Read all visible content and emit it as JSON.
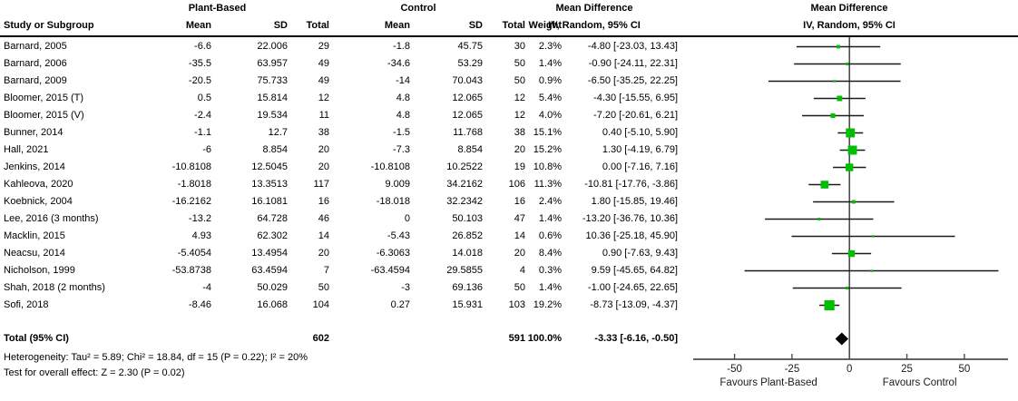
{
  "header": {
    "group1": "Plant-Based",
    "group2": "Control",
    "col_study": "Study or Subgroup",
    "col_mean": "Mean",
    "col_sd": "SD",
    "col_total": "Total",
    "col_weight": "Weight",
    "md_title": "Mean Difference",
    "md_sub": "IV, Random, 95% CI"
  },
  "total_row": {
    "label": "Total (95% CI)",
    "pb_n": "602",
    "c_n": "591",
    "weight": "100.0%",
    "ci": "-3.33 [-6.16, -0.50]"
  },
  "footer": {
    "heterogeneity": "Heterogeneity: Tau² = 5.89; Chi² = 18.84, df = 15 (P = 0.22); I² = 20%",
    "overall_effect": "Test for overall effect: Z = 2.30 (P = 0.02)"
  },
  "chart_data": {
    "type": "forest",
    "effect_measure": "Mean Difference",
    "method": "IV, Random, 95% CI",
    "axis_ticks": [
      -50,
      -25,
      0,
      25,
      50
    ],
    "xlim": [
      -68,
      69
    ],
    "favours_left": "Favours Plant-Based",
    "favours_right": "Favours Control",
    "square_color": "#00bf00",
    "diamond_color": "#000000",
    "studies": [
      {
        "name": "Barnard, 2005",
        "pb_mean": "-6.6",
        "pb_sd": "22.006",
        "pb_n": "29",
        "c_mean": "-1.8",
        "c_sd": "45.75",
        "c_n": "30",
        "weight": "2.3%",
        "ci": "-4.80 [-23.03, 13.43]",
        "md": -4.8,
        "lo": -23.03,
        "hi": 13.43,
        "w": 2.3
      },
      {
        "name": "Barnard, 2006",
        "pb_mean": "-35.5",
        "pb_sd": "63.957",
        "pb_n": "49",
        "c_mean": "-34.6",
        "c_sd": "53.29",
        "c_n": "50",
        "weight": "1.4%",
        "ci": "-0.90 [-24.11, 22.31]",
        "md": -0.9,
        "lo": -24.11,
        "hi": 22.31,
        "w": 1.4
      },
      {
        "name": "Barnard, 2009",
        "pb_mean": "-20.5",
        "pb_sd": "75.733",
        "pb_n": "49",
        "c_mean": "-14",
        "c_sd": "70.043",
        "c_n": "50",
        "weight": "0.9%",
        "ci": "-6.50 [-35.25, 22.25]",
        "md": -6.5,
        "lo": -35.25,
        "hi": 22.25,
        "w": 0.9
      },
      {
        "name": "Bloomer, 2015 (T)",
        "pb_mean": "0.5",
        "pb_sd": "15.814",
        "pb_n": "12",
        "c_mean": "4.8",
        "c_sd": "12.065",
        "c_n": "12",
        "weight": "5.4%",
        "ci": "-4.30 [-15.55, 6.95]",
        "md": -4.3,
        "lo": -15.55,
        "hi": 6.95,
        "w": 5.4
      },
      {
        "name": "Bloomer, 2015 (V)",
        "pb_mean": "-2.4",
        "pb_sd": "19.534",
        "pb_n": "11",
        "c_mean": "4.8",
        "c_sd": "12.065",
        "c_n": "12",
        "weight": "4.0%",
        "ci": "-7.20 [-20.61, 6.21]",
        "md": -7.2,
        "lo": -20.61,
        "hi": 6.21,
        "w": 4.0
      },
      {
        "name": "Bunner, 2014",
        "pb_mean": "-1.1",
        "pb_sd": "12.7",
        "pb_n": "38",
        "c_mean": "-1.5",
        "c_sd": "11.768",
        "c_n": "38",
        "weight": "15.1%",
        "ci": "0.40 [-5.10, 5.90]",
        "md": 0.4,
        "lo": -5.1,
        "hi": 5.9,
        "w": 15.1
      },
      {
        "name": "Hall, 2021",
        "pb_mean": "-6",
        "pb_sd": "8.854",
        "pb_n": "20",
        "c_mean": "-7.3",
        "c_sd": "8.854",
        "c_n": "20",
        "weight": "15.2%",
        "ci": "1.30 [-4.19, 6.79]",
        "md": 1.3,
        "lo": -4.19,
        "hi": 6.79,
        "w": 15.2
      },
      {
        "name": "Jenkins, 2014",
        "pb_mean": "-10.8108",
        "pb_sd": "12.5045",
        "pb_n": "20",
        "c_mean": "-10.8108",
        "c_sd": "10.2522",
        "c_n": "19",
        "weight": "10.8%",
        "ci": "0.00 [-7.16, 7.16]",
        "md": 0.0,
        "lo": -7.16,
        "hi": 7.16,
        "w": 10.8
      },
      {
        "name": "Kahleova, 2020",
        "pb_mean": "-1.8018",
        "pb_sd": "13.3513",
        "pb_n": "117",
        "c_mean": "9.009",
        "c_sd": "34.2162",
        "c_n": "106",
        "weight": "11.3%",
        "ci": "-10.81 [-17.76, -3.86]",
        "md": -10.81,
        "lo": -17.76,
        "hi": -3.86,
        "w": 11.3
      },
      {
        "name": "Koebnick, 2004",
        "pb_mean": "-16.2162",
        "pb_sd": "16.1081",
        "pb_n": "16",
        "c_mean": "-18.018",
        "c_sd": "32.2342",
        "c_n": "16",
        "weight": "2.4%",
        "ci": "1.80 [-15.85, 19.46]",
        "md": 1.8,
        "lo": -15.85,
        "hi": 19.46,
        "w": 2.4
      },
      {
        "name": "Lee, 2016 (3 months)",
        "pb_mean": "-13.2",
        "pb_sd": "64.728",
        "pb_n": "46",
        "c_mean": "0",
        "c_sd": "50.103",
        "c_n": "47",
        "weight": "1.4%",
        "ci": "-13.20 [-36.76, 10.36]",
        "md": -13.2,
        "lo": -36.76,
        "hi": 10.36,
        "w": 1.4
      },
      {
        "name": "Macklin, 2015",
        "pb_mean": "4.93",
        "pb_sd": "62.302",
        "pb_n": "14",
        "c_mean": "-5.43",
        "c_sd": "26.852",
        "c_n": "14",
        "weight": "0.6%",
        "ci": "10.36 [-25.18, 45.90]",
        "md": 10.36,
        "lo": -25.18,
        "hi": 45.9,
        "w": 0.6
      },
      {
        "name": "Neacsu, 2014",
        "pb_mean": "-5.4054",
        "pb_sd": "13.4954",
        "pb_n": "20",
        "c_mean": "-6.3063",
        "c_sd": "14.018",
        "c_n": "20",
        "weight": "8.4%",
        "ci": "0.90 [-7.63, 9.43]",
        "md": 0.9,
        "lo": -7.63,
        "hi": 9.43,
        "w": 8.4
      },
      {
        "name": "Nicholson, 1999",
        "pb_mean": "-53.8738",
        "pb_sd": "63.4594",
        "pb_n": "7",
        "c_mean": "-63.4594",
        "c_sd": "29.5855",
        "c_n": "4",
        "weight": "0.3%",
        "ci": "9.59 [-45.65, 64.82]",
        "md": 9.59,
        "lo": -45.65,
        "hi": 64.82,
        "w": 0.3
      },
      {
        "name": "Shah, 2018 (2 months)",
        "pb_mean": "-4",
        "pb_sd": "50.029",
        "pb_n": "50",
        "c_mean": "-3",
        "c_sd": "69.136",
        "c_n": "50",
        "weight": "1.4%",
        "ci": "-1.00 [-24.65, 22.65]",
        "md": -1.0,
        "lo": -24.65,
        "hi": 22.65,
        "w": 1.4
      },
      {
        "name": "Sofi, 2018",
        "pb_mean": "-8.46",
        "pb_sd": "16.068",
        "pb_n": "104",
        "c_mean": "0.27",
        "c_sd": "15.931",
        "c_n": "103",
        "weight": "19.2%",
        "ci": "-8.73 [-13.09, -4.37]",
        "md": -8.73,
        "lo": -13.09,
        "hi": -4.37,
        "w": 19.2
      }
    ],
    "pooled": {
      "md": -3.33,
      "lo": -6.16,
      "hi": -0.5,
      "weight": 100.0
    }
  }
}
